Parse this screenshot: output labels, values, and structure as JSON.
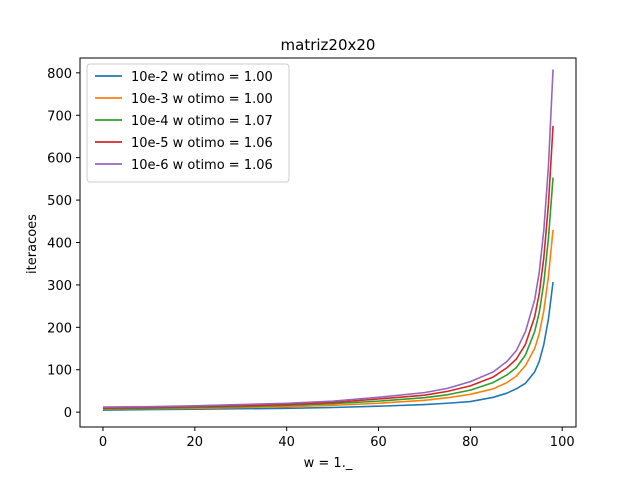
{
  "chart_data": {
    "type": "line",
    "title": "matriz20x20",
    "xlabel": "w = 1._",
    "ylabel": "iteracoes",
    "xlim": [
      -5,
      103
    ],
    "ylim": [
      -35,
      835
    ],
    "xticks": [
      "0",
      "20",
      "40",
      "60",
      "80",
      "100"
    ],
    "yticks": [
      "0",
      "100",
      "200",
      "300",
      "400",
      "500",
      "600",
      "700",
      "800"
    ],
    "grid": false,
    "legend_position": "top-left",
    "series": [
      {
        "name": "10e-2 w otimo = 1.00",
        "color": "#1f77b4",
        "x": [
          0,
          10,
          20,
          30,
          40,
          50,
          60,
          70,
          75,
          80,
          85,
          88,
          90,
          92,
          94,
          95,
          96,
          97,
          98
        ],
        "values": [
          5,
          6,
          7,
          8,
          9,
          11,
          14,
          18,
          21,
          25,
          35,
          45,
          55,
          68,
          95,
          120,
          160,
          220,
          307
        ]
      },
      {
        "name": "10e-3 w otimo = 1.00",
        "color": "#ff7f0e",
        "x": [
          0,
          10,
          20,
          30,
          40,
          50,
          60,
          70,
          75,
          80,
          85,
          88,
          90,
          92,
          94,
          95,
          96,
          97,
          98
        ],
        "values": [
          7,
          8,
          9,
          11,
          13,
          16,
          21,
          28,
          34,
          42,
          55,
          70,
          85,
          110,
          150,
          185,
          240,
          320,
          430
        ]
      },
      {
        "name": "10e-4 w otimo = 1.07",
        "color": "#2ca02c",
        "x": [
          0,
          10,
          20,
          30,
          40,
          50,
          60,
          70,
          75,
          80,
          85,
          88,
          90,
          92,
          94,
          95,
          96,
          97,
          98
        ],
        "values": [
          8,
          9,
          11,
          13,
          16,
          20,
          26,
          34,
          41,
          52,
          70,
          88,
          105,
          135,
          190,
          235,
          305,
          410,
          553
        ]
      },
      {
        "name": "10e-5 w otimo = 1.06",
        "color": "#d62728",
        "x": [
          0,
          10,
          20,
          30,
          40,
          50,
          60,
          70,
          75,
          80,
          85,
          88,
          90,
          92,
          94,
          95,
          96,
          97,
          98
        ],
        "values": [
          10,
          11,
          13,
          15,
          18,
          23,
          31,
          40,
          49,
          62,
          83,
          105,
          125,
          160,
          225,
          280,
          365,
          490,
          675
        ]
      },
      {
        "name": "10e-6 w otimo = 1.06",
        "color": "#9467bd",
        "x": [
          0,
          10,
          20,
          30,
          40,
          50,
          60,
          70,
          75,
          80,
          85,
          88,
          90,
          92,
          94,
          95,
          96,
          97,
          98
        ],
        "values": [
          12,
          13,
          15,
          18,
          21,
          26,
          35,
          46,
          56,
          72,
          95,
          120,
          145,
          190,
          265,
          330,
          430,
          580,
          808
        ]
      }
    ]
  }
}
